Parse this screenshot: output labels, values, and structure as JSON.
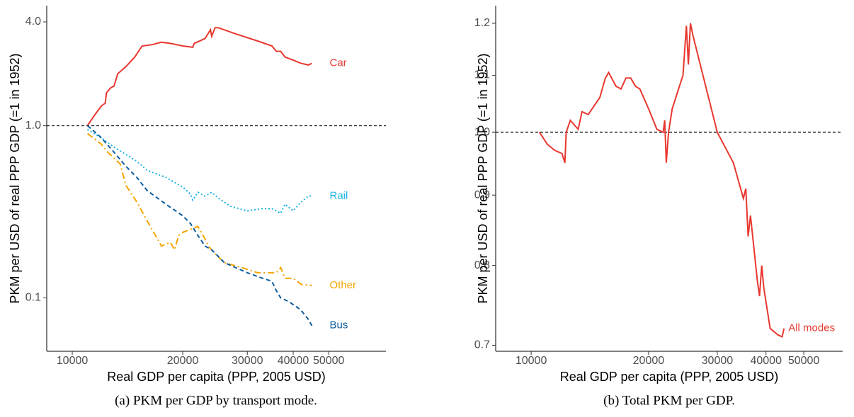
{
  "chart_data": [
    {
      "type": "line",
      "caption": "(a) PKM per GDP by transport mode.",
      "xlabel": "Real GDP per capita (PPP, 2005 USD)",
      "ylabel": "PKM per USD of real PPP GDP (=1 in 1952)",
      "xscale": "log",
      "yscale": "log",
      "xlim": [
        8520,
        71600
      ],
      "ylim": [
        0.049,
        4.97
      ],
      "xticks": [
        10000,
        20000,
        30000,
        40000,
        50000
      ],
      "yticks": [
        0.1,
        {
          "value": 1,
          "label": "1.0"
        },
        {
          "value": 4,
          "label": "4.0"
        }
      ],
      "hline": 1,
      "series": [
        {
          "name": "Car",
          "color": "#e8372f",
          "linestyle": "solid",
          "x": [
            11000,
            11500,
            12000,
            12300,
            12400,
            12700,
            13000,
            13300,
            14000,
            14800,
            15500,
            16500,
            17500,
            18500,
            20000,
            21300,
            21500,
            23000,
            23800,
            24000,
            24500,
            25000,
            28000,
            32000,
            35000,
            36000,
            37000,
            38000,
            40000,
            42000,
            44000,
            45000
          ],
          "values": [
            1.0,
            1.15,
            1.3,
            1.35,
            1.55,
            1.65,
            1.7,
            2.0,
            2.2,
            2.5,
            2.9,
            2.95,
            3.05,
            3.0,
            2.9,
            2.85,
            3.0,
            3.2,
            3.6,
            3.3,
            3.7,
            3.7,
            3.4,
            3.1,
            2.9,
            2.7,
            2.7,
            2.5,
            2.4,
            2.3,
            2.25,
            2.3
          ]
        },
        {
          "name": "Rail",
          "color": "#1ab3e6",
          "linestyle": "dotted",
          "x": [
            11000,
            12000,
            13000,
            14000,
            15000,
            16000,
            18000,
            20000,
            21000,
            21300,
            22000,
            23000,
            24000,
            25000,
            27000,
            30000,
            33000,
            35000,
            37000,
            38000,
            40000,
            42000,
            44000,
            45000
          ],
          "values": [
            0.95,
            0.85,
            0.75,
            0.68,
            0.62,
            0.55,
            0.5,
            0.44,
            0.4,
            0.37,
            0.41,
            0.39,
            0.41,
            0.38,
            0.34,
            0.32,
            0.33,
            0.33,
            0.31,
            0.35,
            0.32,
            0.36,
            0.39,
            0.39
          ]
        },
        {
          "name": "Other",
          "color": "#f5a500",
          "linestyle": "dashdot",
          "x": [
            11000,
            12000,
            12500,
            13500,
            14000,
            15000,
            16000,
            17500,
            18500,
            19000,
            19500,
            20000,
            21000,
            22000,
            23000,
            23500,
            24500,
            26000,
            29000,
            32000,
            36000,
            37000,
            38000,
            40000,
            42000,
            45000
          ],
          "values": [
            0.9,
            0.78,
            0.7,
            0.6,
            0.45,
            0.36,
            0.28,
            0.2,
            0.21,
            0.19,
            0.23,
            0.24,
            0.25,
            0.26,
            0.22,
            0.2,
            0.18,
            0.16,
            0.15,
            0.14,
            0.14,
            0.15,
            0.13,
            0.13,
            0.12,
            0.118
          ]
        },
        {
          "name": "Bus",
          "color": "#0d5c9e",
          "linestyle": "dashed",
          "x": [
            11000,
            12000,
            13000,
            14000,
            15000,
            16000,
            18000,
            20000,
            21000,
            22000,
            23000,
            24000,
            26000,
            30000,
            33000,
            35000,
            36000,
            37000,
            39000,
            42000,
            44000,
            45000
          ],
          "values": [
            1.0,
            0.85,
            0.7,
            0.58,
            0.5,
            0.42,
            0.35,
            0.3,
            0.27,
            0.23,
            0.2,
            0.19,
            0.16,
            0.14,
            0.13,
            0.125,
            0.11,
            0.1,
            0.095,
            0.085,
            0.075,
            0.069
          ]
        }
      ]
    },
    {
      "type": "line",
      "caption": "(b) Total PKM per GDP.",
      "xlabel": "Real GDP per capita (PPP, 2005 USD)",
      "ylabel": "PKM per USD of real PPP GDP (=1 in 1952)",
      "xscale": "log",
      "yscale": "log",
      "xlim": [
        8110,
        62900
      ],
      "ylim": [
        0.693,
        1.236
      ],
      "xticks": [
        10000,
        20000,
        30000,
        40000,
        50000
      ],
      "yticks": [
        0.7,
        0.8,
        0.9,
        {
          "value": 1,
          "label": "1.0"
        },
        1.1,
        1.2
      ],
      "hline": 1,
      "series": [
        {
          "name": "All modes",
          "color": "#e8372f",
          "linestyle": "solid",
          "x": [
            10500,
            11000,
            11500,
            12000,
            12200,
            12300,
            12600,
            13200,
            13500,
            14000,
            15000,
            15500,
            15800,
            16500,
            17000,
            17500,
            18000,
            18500,
            19000,
            20000,
            21000,
            21800,
            22000,
            22200,
            22500,
            23000,
            24000,
            24500,
            25000,
            25300,
            25600,
            26000,
            30000,
            33000,
            35000,
            35500,
            36000,
            36500,
            38000,
            38500,
            39000,
            39500,
            41000,
            43000,
            44000,
            44500
          ],
          "values": [
            1.0,
            0.98,
            0.97,
            0.965,
            0.95,
            1.0,
            1.02,
            1.005,
            1.035,
            1.03,
            1.06,
            1.095,
            1.105,
            1.08,
            1.075,
            1.095,
            1.095,
            1.08,
            1.075,
            1.04,
            1.005,
            1.0,
            1.02,
            0.95,
            1.0,
            1.04,
            1.08,
            1.1,
            1.195,
            1.12,
            1.2,
            1.175,
            1.0,
            0.95,
            0.895,
            0.91,
            0.84,
            0.87,
            0.78,
            0.76,
            0.8,
            0.77,
            0.72,
            0.712,
            0.71,
            0.72
          ]
        }
      ]
    }
  ]
}
